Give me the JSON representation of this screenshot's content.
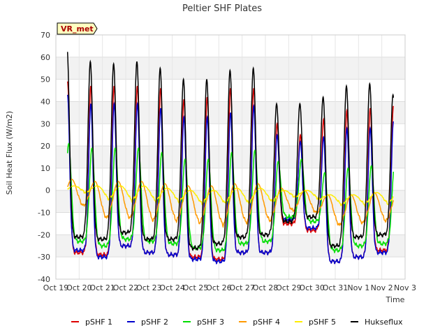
{
  "chart_data": {
    "type": "line",
    "title": "Peltier SHF Plates",
    "xlabel": "Time",
    "ylabel": "Soil Heat Flux (W/m2)",
    "badge": "VR_met",
    "ylim": [
      -40,
      70
    ],
    "yticks": [
      -40,
      -30,
      -20,
      -10,
      0,
      10,
      20,
      30,
      40,
      50,
      60,
      70
    ],
    "xlim": [
      0,
      15
    ],
    "xticks": [
      {
        "value": 0,
        "label": "Oct 19"
      },
      {
        "value": 1,
        "label": "Oct 20"
      },
      {
        "value": 2,
        "label": "Oct 21"
      },
      {
        "value": 3,
        "label": "Oct 22"
      },
      {
        "value": 4,
        "label": "Oct 23"
      },
      {
        "value": 5,
        "label": "Oct 24"
      },
      {
        "value": 6,
        "label": "Oct 25"
      },
      {
        "value": 7,
        "label": "Oct 26"
      },
      {
        "value": 8,
        "label": "Oct 27"
      },
      {
        "value": 9,
        "label": "Oct 28"
      },
      {
        "value": 10,
        "label": "Oct 29"
      },
      {
        "value": 11,
        "label": "Oct 30"
      },
      {
        "value": 12,
        "label": "Oct 31"
      },
      {
        "value": 13,
        "label": "Nov 1"
      },
      {
        "value": 14,
        "label": "Nov 2"
      },
      {
        "value": 15,
        "label": "Nov 3"
      }
    ],
    "grid": true,
    "legend_position": "bottom",
    "x_start": 0.5,
    "x_end": 14.5,
    "peak_days": [
      0.5,
      1.5,
      2.5,
      3.5,
      4.5,
      5.5,
      6.5,
      7.5,
      8.5,
      9.5,
      10.5,
      11.5,
      12.5,
      13.5,
      14.5
    ],
    "series": [
      {
        "name": "pSHF 1",
        "color": "#dd0000",
        "phase": 0.0,
        "width": 0.09,
        "peaks": [
          49,
          47,
          47,
          47,
          46,
          41,
          42,
          46,
          46,
          30,
          25,
          32,
          36,
          37,
          38
        ],
        "troughs": [
          -28,
          -29,
          -25,
          -28,
          -29,
          -30,
          -31,
          -28,
          -28,
          -15,
          -18,
          -32,
          -30,
          -27,
          -28
        ]
      },
      {
        "name": "pSHF 2",
        "color": "#0000cc",
        "phase": 0.0,
        "width": 0.09,
        "peaks": [
          43,
          39,
          39,
          39,
          37,
          33,
          33,
          35,
          38,
          25,
          22,
          24,
          28,
          28,
          31
        ],
        "troughs": [
          -27,
          -30,
          -25,
          -28,
          -29,
          -31,
          -32,
          -28,
          -28,
          -13,
          -17,
          -32,
          -30,
          -28,
          -27
        ]
      },
      {
        "name": "pSHF 3",
        "color": "#00dd00",
        "phase": 0.05,
        "width": 0.11,
        "peaks": [
          21,
          19,
          19,
          19,
          17,
          14,
          14,
          17,
          18,
          13,
          14,
          8,
          10,
          11,
          12
        ],
        "troughs": [
          -23,
          -25,
          -22,
          -23,
          -24,
          -26,
          -27,
          -24,
          -23,
          -12,
          -14,
          -27,
          -25,
          -24,
          -23
        ]
      },
      {
        "name": "pSHF 4",
        "color": "#ff9900",
        "phase": 0.18,
        "width": 0.22,
        "peaks": [
          5,
          4,
          4,
          4,
          3,
          2,
          2,
          3,
          3,
          1,
          0,
          -2,
          -2,
          -1,
          0
        ],
        "troughs": [
          -8,
          -14,
          -14,
          -15,
          -15,
          -16,
          -17,
          -16,
          -15,
          -10,
          -11,
          -17,
          -16,
          -15,
          -10
        ]
      },
      {
        "name": "pSHF 5",
        "color": "#ffee00",
        "phase": 0.28,
        "width": 0.3,
        "peaks": [
          2,
          2,
          2,
          2,
          1,
          0,
          0,
          1,
          1,
          0,
          0,
          -2,
          -2,
          -1,
          0
        ],
        "troughs": [
          -2,
          -6,
          -7,
          -7,
          -7,
          -8,
          -8,
          -8,
          -7,
          -4,
          -5,
          -8,
          -8,
          -8,
          -6
        ]
      },
      {
        "name": "Hukseflux",
        "color": "#000000",
        "phase": -0.02,
        "width": 0.1,
        "peaks": [
          64,
          58,
          57,
          58,
          55,
          50,
          50,
          54,
          55,
          39,
          39,
          42,
          47,
          48,
          43
        ],
        "troughs": [
          -21,
          -22,
          -19,
          -22,
          -22,
          -26,
          -24,
          -21,
          -20,
          -14,
          -12,
          -25,
          -21,
          -20,
          -22
        ]
      }
    ]
  }
}
